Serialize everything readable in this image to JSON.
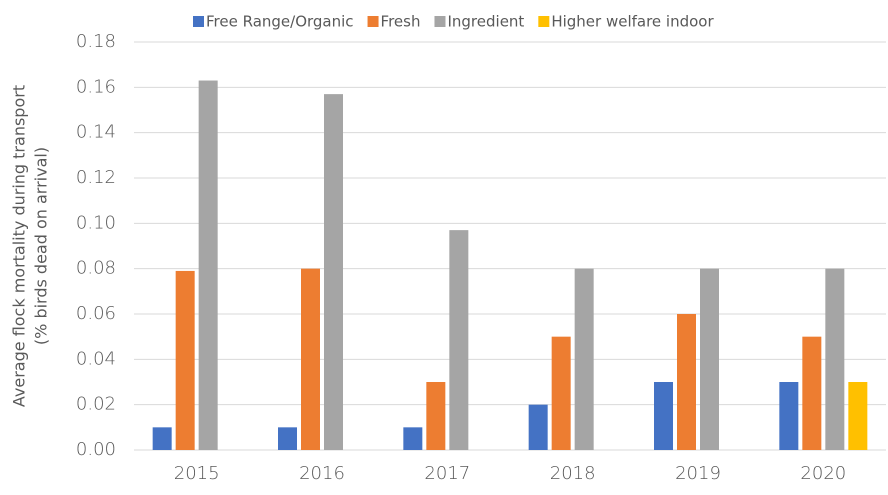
{
  "chart_data": {
    "type": "bar",
    "ylabel": [
      "Average flock mortality during transport",
      "(% birds dead on arrival)"
    ],
    "categories": [
      "2015",
      "2016",
      "2017",
      "2018",
      "2019",
      "2020"
    ],
    "series": [
      {
        "name": "Free Range/Organic",
        "color": "#4472c4",
        "values": [
          0.01,
          0.01,
          0.01,
          0.02,
          0.03,
          0.03
        ]
      },
      {
        "name": "Fresh",
        "color": "#ed7d31",
        "values": [
          0.079,
          0.08,
          0.03,
          0.05,
          0.06,
          0.05
        ]
      },
      {
        "name": "Ingredient",
        "color": "#a5a5a5",
        "values": [
          0.163,
          0.157,
          0.097,
          0.08,
          0.08,
          0.08
        ]
      },
      {
        "name": "Higher welfare indoor",
        "color": "#ffc000",
        "values": [
          null,
          null,
          null,
          null,
          null,
          0.03
        ]
      }
    ],
    "ylim": [
      0,
      0.18
    ],
    "yticks": [
      {
        "value": 0,
        "label": "0.00"
      },
      0.02,
      0.04,
      0.06,
      0.08,
      {
        "value": 0.1,
        "label": "0.10"
      },
      0.12,
      0.14,
      0.16,
      0.18
    ],
    "grid": true,
    "legend": "top"
  }
}
